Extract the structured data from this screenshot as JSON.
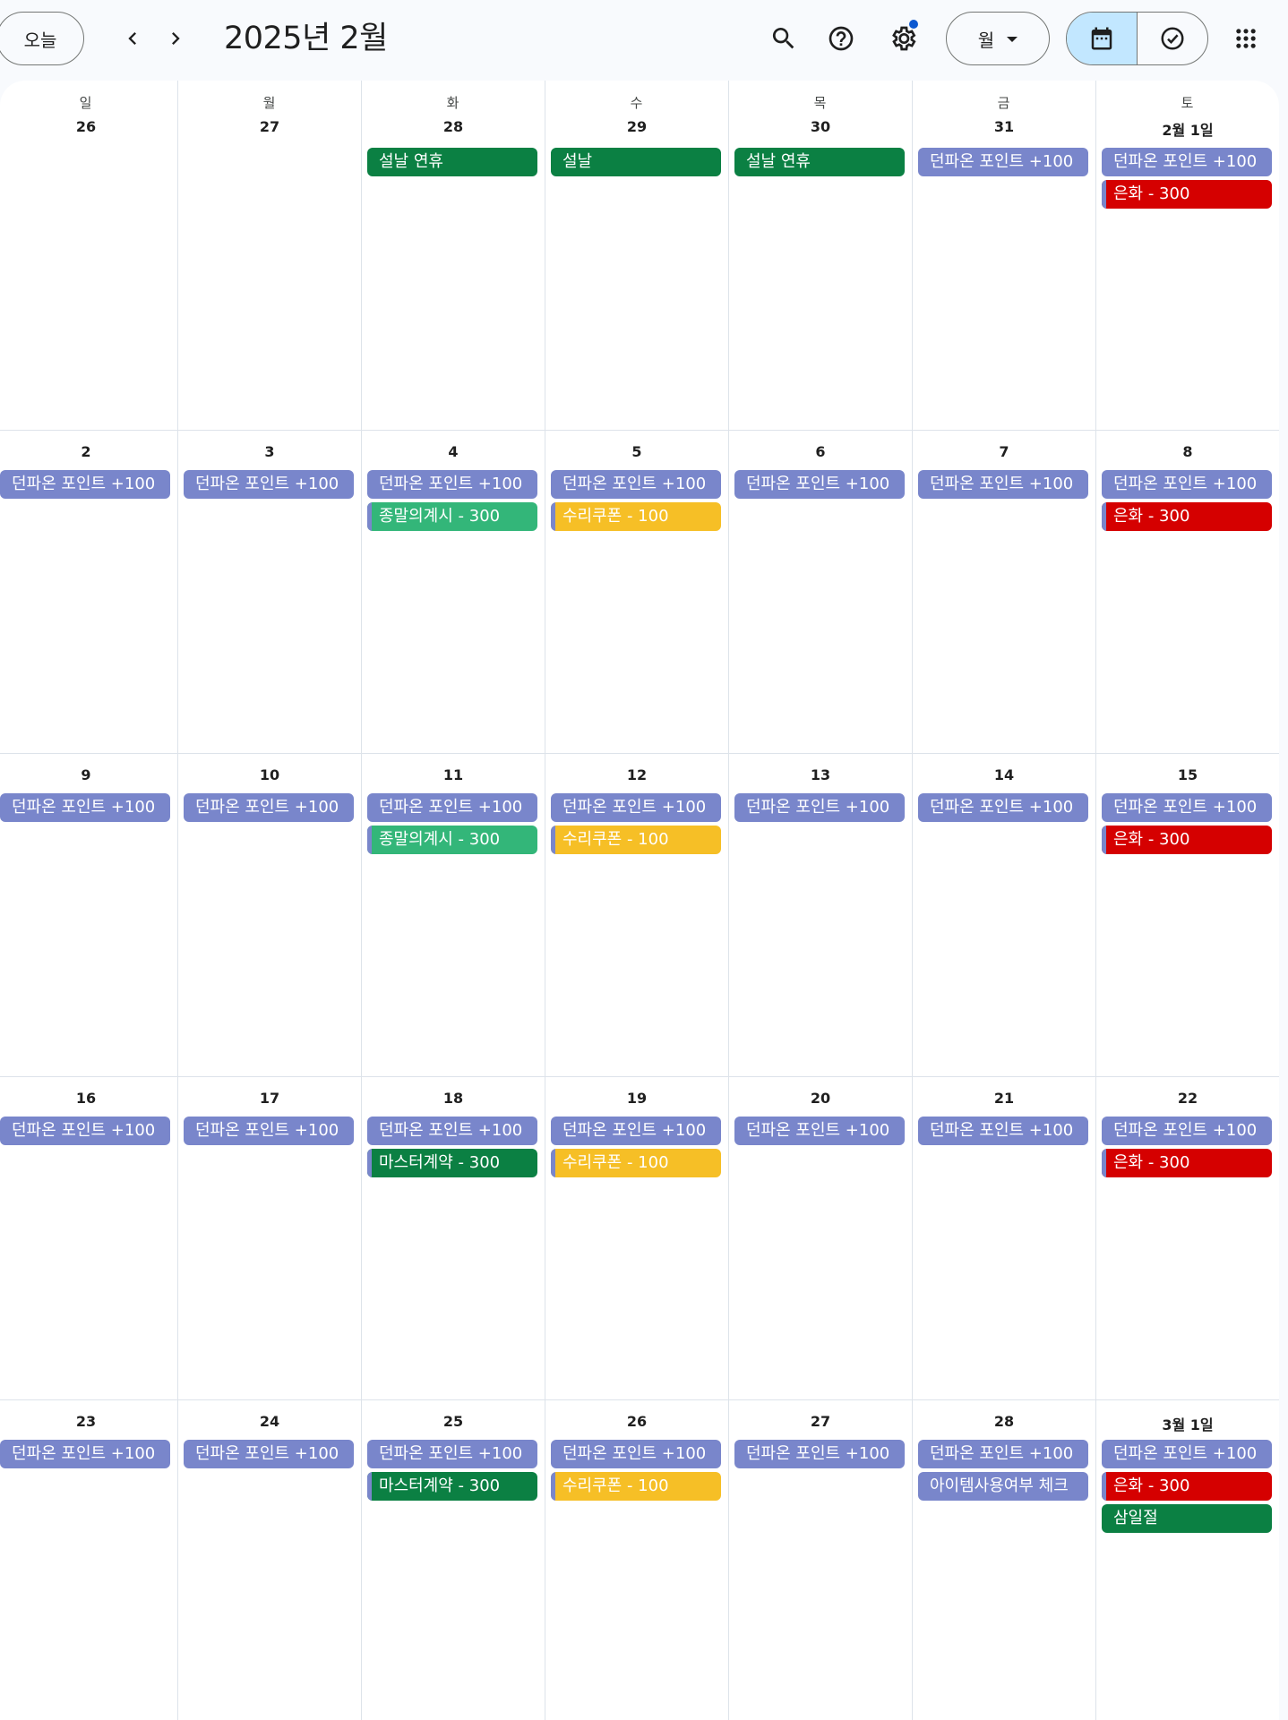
{
  "header": {
    "today_label": "오늘",
    "title": "2025년 2월",
    "view_label": "월",
    "settings_badge": true
  },
  "colors": {
    "lavender": "#7986cb",
    "green": "#0b8043",
    "teal": "#33b679",
    "yellow": "#f6bf26",
    "red": "#d50000",
    "active_toggle": "#c2e7ff",
    "notification_dot": "#0b57d0"
  },
  "weekdays": [
    "일",
    "월",
    "화",
    "수",
    "목",
    "금",
    "토"
  ],
  "weeks": [
    [
      {
        "day": "26",
        "events": []
      },
      {
        "day": "27",
        "events": []
      },
      {
        "day": "28",
        "events": [
          {
            "title": "설날 연휴",
            "color": "#0b8043",
            "bar": false
          }
        ]
      },
      {
        "day": "29",
        "events": [
          {
            "title": "설날",
            "color": "#0b8043",
            "bar": false
          }
        ]
      },
      {
        "day": "30",
        "events": [
          {
            "title": "설날 연휴",
            "color": "#0b8043",
            "bar": false
          }
        ]
      },
      {
        "day": "31",
        "events": [
          {
            "title": "던파온 포인트 +100",
            "color": "#7986cb",
            "bar": false
          }
        ]
      },
      {
        "day": "2월 1일",
        "events": [
          {
            "title": "던파온 포인트 +100",
            "color": "#7986cb",
            "bar": false
          },
          {
            "title": "은화 - 300",
            "color": "#d50000",
            "bar": true
          }
        ]
      }
    ],
    [
      {
        "day": "2",
        "events": [
          {
            "title": "던파온 포인트 +100",
            "color": "#7986cb",
            "bar": false
          }
        ]
      },
      {
        "day": "3",
        "events": [
          {
            "title": "던파온 포인트 +100",
            "color": "#7986cb",
            "bar": false
          }
        ]
      },
      {
        "day": "4",
        "events": [
          {
            "title": "던파온 포인트 +100",
            "color": "#7986cb",
            "bar": false
          },
          {
            "title": "종말의계시 - 300",
            "color": "#33b679",
            "bar": true
          }
        ]
      },
      {
        "day": "5",
        "events": [
          {
            "title": "던파온 포인트 +100",
            "color": "#7986cb",
            "bar": false
          },
          {
            "title": "수리쿠폰 - 100",
            "color": "#f6bf26",
            "bar": true
          }
        ]
      },
      {
        "day": "6",
        "events": [
          {
            "title": "던파온 포인트 +100",
            "color": "#7986cb",
            "bar": false
          }
        ]
      },
      {
        "day": "7",
        "events": [
          {
            "title": "던파온 포인트 +100",
            "color": "#7986cb",
            "bar": false
          }
        ]
      },
      {
        "day": "8",
        "events": [
          {
            "title": "던파온 포인트 +100",
            "color": "#7986cb",
            "bar": false
          },
          {
            "title": "은화 - 300",
            "color": "#d50000",
            "bar": true
          }
        ]
      }
    ],
    [
      {
        "day": "9",
        "events": [
          {
            "title": "던파온 포인트 +100",
            "color": "#7986cb",
            "bar": false
          }
        ]
      },
      {
        "day": "10",
        "events": [
          {
            "title": "던파온 포인트 +100",
            "color": "#7986cb",
            "bar": false
          }
        ]
      },
      {
        "day": "11",
        "events": [
          {
            "title": "던파온 포인트 +100",
            "color": "#7986cb",
            "bar": false
          },
          {
            "title": "종말의계시 - 300",
            "color": "#33b679",
            "bar": true
          }
        ]
      },
      {
        "day": "12",
        "events": [
          {
            "title": "던파온 포인트 +100",
            "color": "#7986cb",
            "bar": false
          },
          {
            "title": "수리쿠폰 - 100",
            "color": "#f6bf26",
            "bar": true
          }
        ]
      },
      {
        "day": "13",
        "events": [
          {
            "title": "던파온 포인트 +100",
            "color": "#7986cb",
            "bar": false
          }
        ]
      },
      {
        "day": "14",
        "events": [
          {
            "title": "던파온 포인트 +100",
            "color": "#7986cb",
            "bar": false
          }
        ]
      },
      {
        "day": "15",
        "events": [
          {
            "title": "던파온 포인트 +100",
            "color": "#7986cb",
            "bar": false
          },
          {
            "title": "은화 - 300",
            "color": "#d50000",
            "bar": true
          }
        ]
      }
    ],
    [
      {
        "day": "16",
        "events": [
          {
            "title": "던파온 포인트 +100",
            "color": "#7986cb",
            "bar": false
          }
        ]
      },
      {
        "day": "17",
        "events": [
          {
            "title": "던파온 포인트 +100",
            "color": "#7986cb",
            "bar": false
          }
        ]
      },
      {
        "day": "18",
        "events": [
          {
            "title": "던파온 포인트 +100",
            "color": "#7986cb",
            "bar": false
          },
          {
            "title": "마스터계약 - 300",
            "color": "#0b8043",
            "bar": true
          }
        ]
      },
      {
        "day": "19",
        "events": [
          {
            "title": "던파온 포인트 +100",
            "color": "#7986cb",
            "bar": false
          },
          {
            "title": "수리쿠폰 - 100",
            "color": "#f6bf26",
            "bar": true
          }
        ]
      },
      {
        "day": "20",
        "events": [
          {
            "title": "던파온 포인트 +100",
            "color": "#7986cb",
            "bar": false
          }
        ]
      },
      {
        "day": "21",
        "events": [
          {
            "title": "던파온 포인트 +100",
            "color": "#7986cb",
            "bar": false
          }
        ]
      },
      {
        "day": "22",
        "events": [
          {
            "title": "던파온 포인트 +100",
            "color": "#7986cb",
            "bar": false
          },
          {
            "title": "은화 - 300",
            "color": "#d50000",
            "bar": true
          }
        ]
      }
    ],
    [
      {
        "day": "23",
        "events": [
          {
            "title": "던파온 포인트 +100",
            "color": "#7986cb",
            "bar": false
          }
        ]
      },
      {
        "day": "24",
        "events": [
          {
            "title": "던파온 포인트 +100",
            "color": "#7986cb",
            "bar": false
          }
        ]
      },
      {
        "day": "25",
        "events": [
          {
            "title": "던파온 포인트 +100",
            "color": "#7986cb",
            "bar": false
          },
          {
            "title": "마스터계약 - 300",
            "color": "#0b8043",
            "bar": true
          }
        ]
      },
      {
        "day": "26",
        "events": [
          {
            "title": "던파온 포인트 +100",
            "color": "#7986cb",
            "bar": false
          },
          {
            "title": "수리쿠폰 - 100",
            "color": "#f6bf26",
            "bar": true
          }
        ]
      },
      {
        "day": "27",
        "events": [
          {
            "title": "던파온 포인트 +100",
            "color": "#7986cb",
            "bar": false
          }
        ]
      },
      {
        "day": "28",
        "events": [
          {
            "title": "던파온 포인트 +100",
            "color": "#7986cb",
            "bar": false
          },
          {
            "title": "아이템사용여부 체크",
            "color": "#7986cb",
            "bar": false
          }
        ]
      },
      {
        "day": "3월 1일",
        "events": [
          {
            "title": "던파온 포인트 +100",
            "color": "#7986cb",
            "bar": false
          },
          {
            "title": "은화 - 300",
            "color": "#d50000",
            "bar": true
          },
          {
            "title": "삼일절",
            "color": "#0b8043",
            "bar": false
          }
        ]
      }
    ]
  ]
}
